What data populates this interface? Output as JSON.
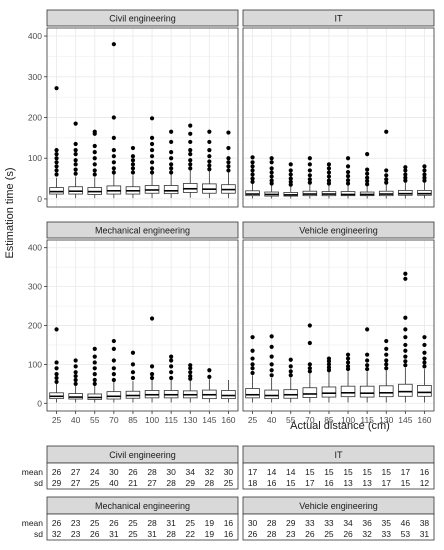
{
  "chart_data": {
    "type": "boxplot",
    "ylabel": "Estimation time (s)",
    "xlabel": "Actual distance (cm)",
    "ylim": [
      0,
      400
    ],
    "y_ticks": [
      0,
      100,
      200,
      300,
      400
    ],
    "categories": [
      "25",
      "40",
      "55",
      "70",
      "85",
      "100",
      "115",
      "130",
      "145",
      "160"
    ],
    "panel_colors": {
      "strip_fill": "#d9d9d9",
      "panel_border": "#333333",
      "grid": "#ebebeb"
    },
    "panels": [
      {
        "name": "Civil engineering",
        "boxes": [
          {
            "lw": 2,
            "q1": 12,
            "med": 18,
            "q3": 28,
            "uw": 52,
            "out": [
              60,
              70,
              80,
              90,
              100,
              110,
              120,
              272
            ]
          },
          {
            "lw": 2,
            "q1": 12,
            "med": 19,
            "q3": 30,
            "uw": 55,
            "out": [
              62,
              72,
              85,
              95,
              110,
              120,
              135,
              185
            ]
          },
          {
            "lw": 2,
            "q1": 11,
            "med": 18,
            "q3": 28,
            "uw": 53,
            "out": [
              60,
              70,
              85,
              100,
              115,
              130,
              160,
              165
            ]
          },
          {
            "lw": 2,
            "q1": 12,
            "med": 20,
            "q3": 32,
            "uw": 60,
            "out": [
              65,
              75,
              90,
              105,
              120,
              150,
              200,
              380
            ]
          },
          {
            "lw": 2,
            "q1": 12,
            "med": 20,
            "q3": 30,
            "uw": 58,
            "out": [
              65,
              75,
              85,
              95,
              105,
              125
            ]
          },
          {
            "lw": 2,
            "q1": 14,
            "med": 22,
            "q3": 33,
            "uw": 60,
            "out": [
              65,
              75,
              90,
              105,
              120,
              135,
              150,
              198
            ]
          },
          {
            "lw": 2,
            "q1": 13,
            "med": 20,
            "q3": 33,
            "uw": 60,
            "out": [
              65,
              75,
              85,
              100,
              115,
              140,
              165
            ]
          },
          {
            "lw": 3,
            "q1": 16,
            "med": 25,
            "q3": 38,
            "uw": 70,
            "out": [
              75,
              85,
              95,
              110,
              120,
              140,
              160,
              180
            ]
          },
          {
            "lw": 2,
            "q1": 14,
            "med": 24,
            "q3": 37,
            "uw": 68,
            "out": [
              73,
              82,
              92,
              105,
              120,
              140,
              165
            ]
          },
          {
            "lw": 2,
            "q1": 14,
            "med": 23,
            "q3": 35,
            "uw": 65,
            "out": [
              70,
              80,
              90,
              100,
              125,
              163
            ]
          }
        ],
        "mean": [
          "26",
          "27",
          "24",
          "30",
          "26",
          "28",
          "30",
          "34",
          "32",
          "30"
        ],
        "sd": [
          "29",
          "27",
          "25",
          "40",
          "21",
          "27",
          "28",
          "29",
          "28",
          "25"
        ]
      },
      {
        "name": "IT",
        "boxes": [
          {
            "lw": 1,
            "q1": 8,
            "med": 12,
            "q3": 20,
            "uw": 38,
            "out": [
              42,
              50,
              60,
              70,
              80,
              90,
              102
            ]
          },
          {
            "lw": 1,
            "q1": 7,
            "med": 11,
            "q3": 17,
            "uw": 33,
            "out": [
              38,
              45,
              55,
              65,
              75,
              90,
              100
            ]
          },
          {
            "lw": 1,
            "q1": 7,
            "med": 10,
            "q3": 16,
            "uw": 30,
            "out": [
              35,
              42,
              50,
              60,
              70,
              85
            ]
          },
          {
            "lw": 1,
            "q1": 8,
            "med": 12,
            "q3": 19,
            "uw": 35,
            "out": [
              40,
              48,
              58,
              70,
              85,
              100
            ]
          },
          {
            "lw": 1,
            "q1": 8,
            "med": 12,
            "q3": 18,
            "uw": 34,
            "out": [
              38,
              45,
              55,
              65,
              75,
              85
            ]
          },
          {
            "lw": 1,
            "q1": 8,
            "med": 11,
            "q3": 18,
            "uw": 34,
            "out": [
              38,
              46,
              56,
              66,
              80,
              100
            ]
          },
          {
            "lw": 1,
            "q1": 8,
            "med": 11,
            "q3": 17,
            "uw": 32,
            "out": [
              36,
              44,
              52,
              62,
              72,
              110
            ]
          },
          {
            "lw": 1,
            "q1": 8,
            "med": 12,
            "q3": 19,
            "uw": 35,
            "out": [
              40,
              48,
              58,
              70,
              165
            ]
          },
          {
            "lw": 1,
            "q1": 9,
            "med": 13,
            "q3": 21,
            "uw": 40,
            "out": [
              45,
              52,
              60,
              70,
              78
            ]
          },
          {
            "lw": 1,
            "q1": 9,
            "med": 13,
            "q3": 21,
            "uw": 40,
            "out": [
              45,
              52,
              60,
              70,
              80
            ]
          }
        ],
        "mean": [
          "17",
          "14",
          "14",
          "15",
          "15",
          "15",
          "15",
          "15",
          "17",
          "16"
        ],
        "sd": [
          "18",
          "16",
          "15",
          "17",
          "16",
          "13",
          "13",
          "17",
          "15",
          "12"
        ]
      },
      {
        "name": "Mechanical engineering",
        "boxes": [
          {
            "lw": 2,
            "q1": 12,
            "med": 18,
            "q3": 27,
            "uw": 50,
            "out": [
              55,
              65,
              75,
              90,
              105,
              190
            ]
          },
          {
            "lw": 2,
            "q1": 11,
            "med": 16,
            "q3": 25,
            "uw": 45,
            "out": [
              50,
              60,
              70,
              80,
              95,
              110
            ]
          },
          {
            "lw": 2,
            "q1": 10,
            "med": 15,
            "q3": 24,
            "uw": 45,
            "out": [
              50,
              60,
              75,
              90,
              105,
              120,
              140
            ]
          },
          {
            "lw": 2,
            "q1": 11,
            "med": 18,
            "q3": 30,
            "uw": 55,
            "out": [
              60,
              75,
              90,
              110,
              140,
              160
            ]
          },
          {
            "lw": 2,
            "q1": 13,
            "med": 20,
            "q3": 31,
            "uw": 57,
            "out": [
              65,
              80,
              100,
              130
            ]
          },
          {
            "lw": 2,
            "q1": 14,
            "med": 22,
            "q3": 33,
            "uw": 60,
            "out": [
              65,
              75,
              95,
              218
            ]
          },
          {
            "lw": 2,
            "q1": 14,
            "med": 22,
            "q3": 33,
            "uw": 60,
            "out": [
              65,
              80,
              95,
              110,
              120
            ]
          },
          {
            "lw": 2,
            "q1": 14,
            "med": 22,
            "q3": 32,
            "uw": 58,
            "out": [
              63,
              70,
              80,
              90,
              98
            ]
          },
          {
            "lw": 2,
            "q1": 12,
            "med": 22,
            "q3": 34,
            "uw": 62,
            "out": [
              68,
              85
            ]
          },
          {
            "lw": 2,
            "q1": 12,
            "med": 20,
            "q3": 33,
            "uw": 60,
            "out": []
          }
        ],
        "mean": [
          "26",
          "23",
          "25",
          "26",
          "25",
          "28",
          "31",
          "25",
          "19",
          "16"
        ],
        "sd": [
          "32",
          "23",
          "26",
          "31",
          "25",
          "31",
          "28",
          "22",
          "19",
          "16"
        ]
      },
      {
        "name": "Vehicle engineering",
        "boxes": [
          {
            "lw": 2,
            "q1": 14,
            "med": 22,
            "q3": 38,
            "uw": 72,
            "out": [
              78,
              90,
              100,
              115,
              135,
              170
            ]
          },
          {
            "lw": 2,
            "q1": 12,
            "med": 20,
            "q3": 34,
            "uw": 65,
            "out": [
              72,
              85,
              100,
              120,
              145,
              172
            ]
          },
          {
            "lw": 2,
            "q1": 13,
            "med": 22,
            "q3": 35,
            "uw": 66,
            "out": [
              72,
              82,
              95,
              112
            ]
          },
          {
            "lw": 2,
            "q1": 15,
            "med": 24,
            "q3": 40,
            "uw": 76,
            "out": [
              82,
              90,
              100,
              155,
              200
            ]
          },
          {
            "lw": 2,
            "q1": 16,
            "med": 26,
            "q3": 42,
            "uw": 80,
            "out": [
              85,
              92,
              100,
              108,
              115
            ]
          },
          {
            "lw": 2,
            "q1": 17,
            "med": 27,
            "q3": 44,
            "uw": 82,
            "out": [
              88,
              95,
              105,
              115,
              125
            ]
          },
          {
            "lw": 2,
            "q1": 16,
            "med": 26,
            "q3": 44,
            "uw": 82,
            "out": [
              88,
              98,
              110,
              125,
              190
            ]
          },
          {
            "lw": 2,
            "q1": 17,
            "med": 27,
            "q3": 45,
            "uw": 84,
            "out": [
              90,
              100,
              110,
              125,
              140,
              160
            ]
          },
          {
            "lw": 2,
            "q1": 18,
            "med": 30,
            "q3": 49,
            "uw": 92,
            "out": [
              98,
              108,
              120,
              135,
              150,
              170,
              190,
              220,
              320,
              333
            ]
          },
          {
            "lw": 2,
            "q1": 18,
            "med": 28,
            "q3": 46,
            "uw": 88,
            "out": [
              95,
              105,
              115,
              130,
              150,
              170
            ]
          }
        ],
        "mean": [
          "30",
          "28",
          "29",
          "33",
          "33",
          "34",
          "36",
          "35",
          "46",
          "38"
        ],
        "sd": [
          "26",
          "28",
          "23",
          "26",
          "25",
          "26",
          "32",
          "33",
          "53",
          "31"
        ]
      }
    ],
    "table": {
      "row_labels": [
        "mean",
        "sd"
      ]
    }
  }
}
